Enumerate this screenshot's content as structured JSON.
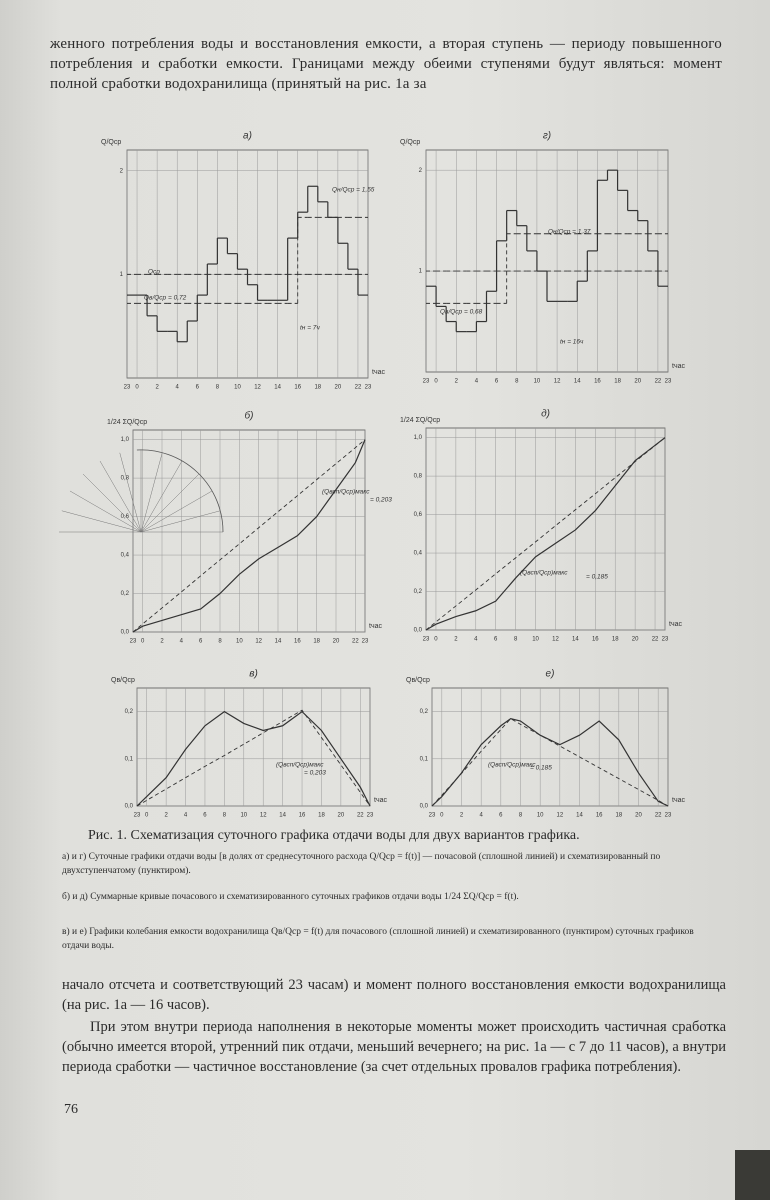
{
  "header_text": "женного потребления воды и восстановления емкости, а вторая ступень — периоду повышенного потребления и сработки емкости. Границами между обеими ступенями будут являться: момент полной сработки водохранилища (принятый на рис. 1а за",
  "chart_data": [
    {
      "type": "step",
      "title": "а)",
      "y_label": "Q/Qср",
      "x_label": "tчас",
      "xlim": [
        -1,
        23
      ],
      "xticks": [
        {
          "value": -1,
          "label": "23"
        },
        0,
        2,
        4,
        6,
        8,
        10,
        12,
        14,
        16,
        18,
        20,
        22,
        23
      ],
      "ylim": [
        0,
        2.2
      ],
      "yticks": [
        1,
        2
      ],
      "grid": true,
      "x": [
        -1,
        0,
        1,
        2,
        3,
        4,
        5,
        6,
        7,
        8,
        9,
        10,
        11,
        12,
        13,
        14,
        15,
        16,
        17,
        18,
        19,
        20,
        21,
        22
      ],
      "series": [
        {
          "color": "#333333",
          "dashed": false,
          "values": [
            0.8,
            0.8,
            0.6,
            0.45,
            0.45,
            0.35,
            0.55,
            0.8,
            1.1,
            1.35,
            1.2,
            1.05,
            0.9,
            0.75,
            0.75,
            0.75,
            1.35,
            1.6,
            1.85,
            1.7,
            1.55,
            1.3,
            1.05,
            0.8
          ]
        },
        {
          "color": "#333333",
          "dashed": true,
          "values": [
            0.72,
            0.72,
            0.72,
            0.72,
            0.72,
            0.72,
            0.72,
            0.72,
            0.72,
            0.72,
            0.72,
            0.72,
            0.72,
            0.72,
            0.72,
            0.72,
            0.72,
            1.55,
            1.55,
            1.55,
            1.55,
            1.55,
            1.55,
            1.55
          ]
        },
        {
          "color": "#333333",
          "dashed": true,
          "values": [
            1,
            1,
            1,
            1,
            1,
            1,
            1,
            1,
            1,
            1,
            1,
            1,
            1,
            1,
            1,
            1,
            1,
            1,
            1,
            1,
            1,
            1,
            1,
            1
          ]
        }
      ],
      "annotations": [
        "Qср",
        "Qв/Qср = 0,72",
        "Qн/Qср = 1,55",
        "tн = 7ч"
      ]
    },
    {
      "type": "step",
      "title": "г)",
      "y_label": "Q/Qср",
      "x_label": "tчас",
      "xlim": [
        -1,
        23
      ],
      "xticks": [
        {
          "value": -1,
          "label": "23"
        },
        0,
        2,
        4,
        6,
        8,
        10,
        12,
        14,
        16,
        18,
        20,
        22,
        23
      ],
      "ylim": [
        0,
        2.2
      ],
      "yticks": [
        1,
        2
      ],
      "grid": true,
      "x": [
        -1,
        0,
        1,
        2,
        3,
        4,
        5,
        6,
        7,
        8,
        9,
        10,
        11,
        12,
        13,
        14,
        15,
        16,
        17,
        18,
        19,
        20,
        21,
        22
      ],
      "series": [
        {
          "color": "#333333",
          "dashed": false,
          "values": [
            0.85,
            0.65,
            0.5,
            0.4,
            0.4,
            0.5,
            0.8,
            1.3,
            1.6,
            1.45,
            1.2,
            1.0,
            0.7,
            0.7,
            0.7,
            0.9,
            1.2,
            1.9,
            2.0,
            1.8,
            1.6,
            1.5,
            1.2,
            0.85
          ]
        },
        {
          "color": "#333333",
          "dashed": true,
          "values": [
            0.68,
            0.68,
            0.68,
            0.68,
            0.68,
            0.68,
            0.68,
            0.68,
            1.37,
            1.37,
            1.37,
            1.37,
            1.37,
            1.37,
            1.37,
            1.37,
            1.37,
            1.37,
            1.37,
            1.37,
            1.37,
            1.37,
            1.37,
            1.37
          ]
        },
        {
          "color": "#333333",
          "dashed": true,
          "values": [
            1,
            1,
            1,
            1,
            1,
            1,
            1,
            1,
            1,
            1,
            1,
            1,
            1,
            1,
            1,
            1,
            1,
            1,
            1,
            1,
            1,
            1,
            1,
            1
          ]
        }
      ],
      "annotations": [
        "Qв/Qср = 0,68",
        "Qн/Qср = 1,37",
        "tн = 16ч"
      ]
    },
    {
      "type": "line",
      "title": "б)",
      "y_label": "1/24 ΣQ/Qср",
      "x_label": "tчас",
      "xlim": [
        -1,
        23
      ],
      "xticks": [
        {
          "value": -1,
          "label": "23"
        },
        0,
        2,
        4,
        6,
        8,
        10,
        12,
        14,
        16,
        18,
        20,
        22,
        23
      ],
      "ylim": [
        0,
        1.05
      ],
      "yticks": [
        {
          "value": 0,
          "label": "0,0"
        },
        {
          "value": 0.2,
          "label": "0,2"
        },
        {
          "value": 0.4,
          "label": "0,4"
        },
        {
          "value": 0.6,
          "label": "0,6"
        },
        {
          "value": 0.8,
          "label": "0,8"
        },
        {
          "value": 1,
          "label": "1,0"
        }
      ],
      "grid": true,
      "x": [
        -1,
        0,
        2,
        4,
        6,
        8,
        10,
        12,
        14,
        16,
        18,
        20,
        22,
        23
      ],
      "series": [
        {
          "color": "#333333",
          "dashed": false,
          "values": [
            0,
            0.03,
            0.06,
            0.09,
            0.12,
            0.2,
            0.3,
            0.38,
            0.44,
            0.5,
            0.6,
            0.74,
            0.88,
            1.0
          ]
        },
        {
          "color": "#333333",
          "dashed": true,
          "values": [
            0,
            0.042,
            0.125,
            0.208,
            0.292,
            0.375,
            0.458,
            0.542,
            0.625,
            0.708,
            0.792,
            0.875,
            0.958,
            1.0
          ]
        }
      ],
      "annotations": [
        "(Qвсп/Qср)макс",
        "= 0,203"
      ]
    },
    {
      "type": "line",
      "title": "д)",
      "y_label": "1/24 ΣQ/Qср",
      "x_label": "tчас",
      "xlim": [
        -1,
        23
      ],
      "xticks": [
        {
          "value": -1,
          "label": "23"
        },
        0,
        2,
        4,
        6,
        8,
        10,
        12,
        14,
        16,
        18,
        20,
        22,
        23
      ],
      "ylim": [
        0,
        1.05
      ],
      "yticks": [
        {
          "value": 0,
          "label": "0,0"
        },
        {
          "value": 0.2,
          "label": "0,2"
        },
        {
          "value": 0.4,
          "label": "0,4"
        },
        {
          "value": 0.6,
          "label": "0,6"
        },
        {
          "value": 0.8,
          "label": "0,8"
        },
        {
          "value": 1,
          "label": "1,0"
        }
      ],
      "grid": true,
      "x": [
        -1,
        0,
        2,
        4,
        6,
        8,
        10,
        12,
        14,
        16,
        18,
        20,
        22,
        23
      ],
      "series": [
        {
          "color": "#333333",
          "dashed": false,
          "values": [
            0,
            0.03,
            0.07,
            0.1,
            0.15,
            0.27,
            0.38,
            0.45,
            0.52,
            0.62,
            0.75,
            0.88,
            0.96,
            1.0
          ]
        },
        {
          "color": "#333333",
          "dashed": true,
          "values": [
            0,
            0.042,
            0.125,
            0.208,
            0.292,
            0.375,
            0.458,
            0.542,
            0.625,
            0.708,
            0.792,
            0.875,
            0.958,
            1.0
          ]
        }
      ],
      "annotations": [
        "(Qвсп/Qср)макс",
        "= 0,185"
      ]
    },
    {
      "type": "line",
      "title": "в)",
      "y_label": "Qв/Qср",
      "x_label": "tчас",
      "xlim": [
        -1,
        23
      ],
      "xticks": [
        {
          "value": -1,
          "label": "23"
        },
        0,
        2,
        4,
        6,
        8,
        10,
        12,
        14,
        16,
        18,
        20,
        22,
        23
      ],
      "ylim": [
        0,
        0.25
      ],
      "yticks": [
        {
          "value": 0,
          "label": "0,0"
        },
        {
          "value": 0.1,
          "label": "0,1"
        },
        {
          "value": 0.2,
          "label": "0,2"
        }
      ],
      "grid": true,
      "x": [
        -1,
        0,
        2,
        4,
        6,
        8,
        10,
        12,
        14,
        16,
        18,
        20,
        22,
        23
      ],
      "series": [
        {
          "color": "#333333",
          "dashed": false,
          "values": [
            0,
            0.02,
            0.06,
            0.12,
            0.17,
            0.2,
            0.175,
            0.16,
            0.17,
            0.2,
            0.16,
            0.1,
            0.04,
            0
          ]
        },
        {
          "color": "#333333",
          "dashed": true,
          "values": [
            0,
            0.012,
            0.036,
            0.06,
            0.084,
            0.107,
            0.131,
            0.155,
            0.179,
            0.203,
            0.145,
            0.087,
            0.029,
            0
          ]
        }
      ],
      "annotations": [
        "(Qвсп/Qср)макс",
        "= 0,203"
      ]
    },
    {
      "type": "line",
      "title": "е)",
      "y_label": "Qв/Qср",
      "x_label": "tчас",
      "xlim": [
        -1,
        23
      ],
      "xticks": [
        {
          "value": -1,
          "label": "23"
        },
        0,
        2,
        4,
        6,
        8,
        10,
        12,
        14,
        16,
        18,
        20,
        22,
        23
      ],
      "ylim": [
        0,
        0.25
      ],
      "yticks": [
        {
          "value": 0,
          "label": "0,0"
        },
        {
          "value": 0.1,
          "label": "0,1"
        },
        {
          "value": 0.2,
          "label": "0,2"
        }
      ],
      "grid": true,
      "x": [
        -1,
        0,
        2,
        4,
        6,
        7,
        8,
        10,
        12,
        14,
        16,
        18,
        20,
        22,
        23
      ],
      "series": [
        {
          "color": "#333333",
          "dashed": false,
          "values": [
            0,
            0.02,
            0.07,
            0.13,
            0.17,
            0.185,
            0.18,
            0.15,
            0.13,
            0.15,
            0.18,
            0.14,
            0.07,
            0.01,
            0
          ]
        },
        {
          "color": "#333333",
          "dashed": true,
          "values": [
            0,
            0.023,
            0.069,
            0.116,
            0.162,
            0.185,
            0.173,
            0.15,
            0.127,
            0.104,
            0.081,
            0.058,
            0.035,
            0.012,
            0
          ]
        }
      ],
      "annotations": [
        "(Qвсп/Qср)макс",
        "= 0,185"
      ]
    }
  ],
  "caption": {
    "title": "Рис. 1. Схематизация суточного графика отдачи воды для двух вариантов графика.",
    "notes": [
      "а) и г) Суточные графики отдачи воды [в долях от среднесуточного расхода Q/Qср = f(t)] — почасовой (сплошной линией) и схематизированный по двухступенчатому (пунктиром).",
      "б) и д) Суммарные кривые почасового и схематизированного суточных графиков отдачи воды 1/24 ΣQ/Qср = f(t).",
      "в) и е) Графики колебания емкости водохранилища Qв/Qср = f(t) для почасового (сплошной линией) и схематизированного (пунктиром) суточных графиков отдачи воды."
    ]
  },
  "body": [
    "начало отсчета и соответствующий 23 часам) и момент полного восстановления емкости водохранилища (на рис. 1а — 16 часов).",
    "При этом внутри периода наполнения в некоторые моменты может происходить частичная сработка (обычно имеется второй, утренний пик отдачи, меньший вечернего; на рис. 1а — с 7 до 11 часов), а внутри периода сработки — частичное восстановление (за счет отдельных провалов графика потребления)."
  ],
  "page_number": "76"
}
